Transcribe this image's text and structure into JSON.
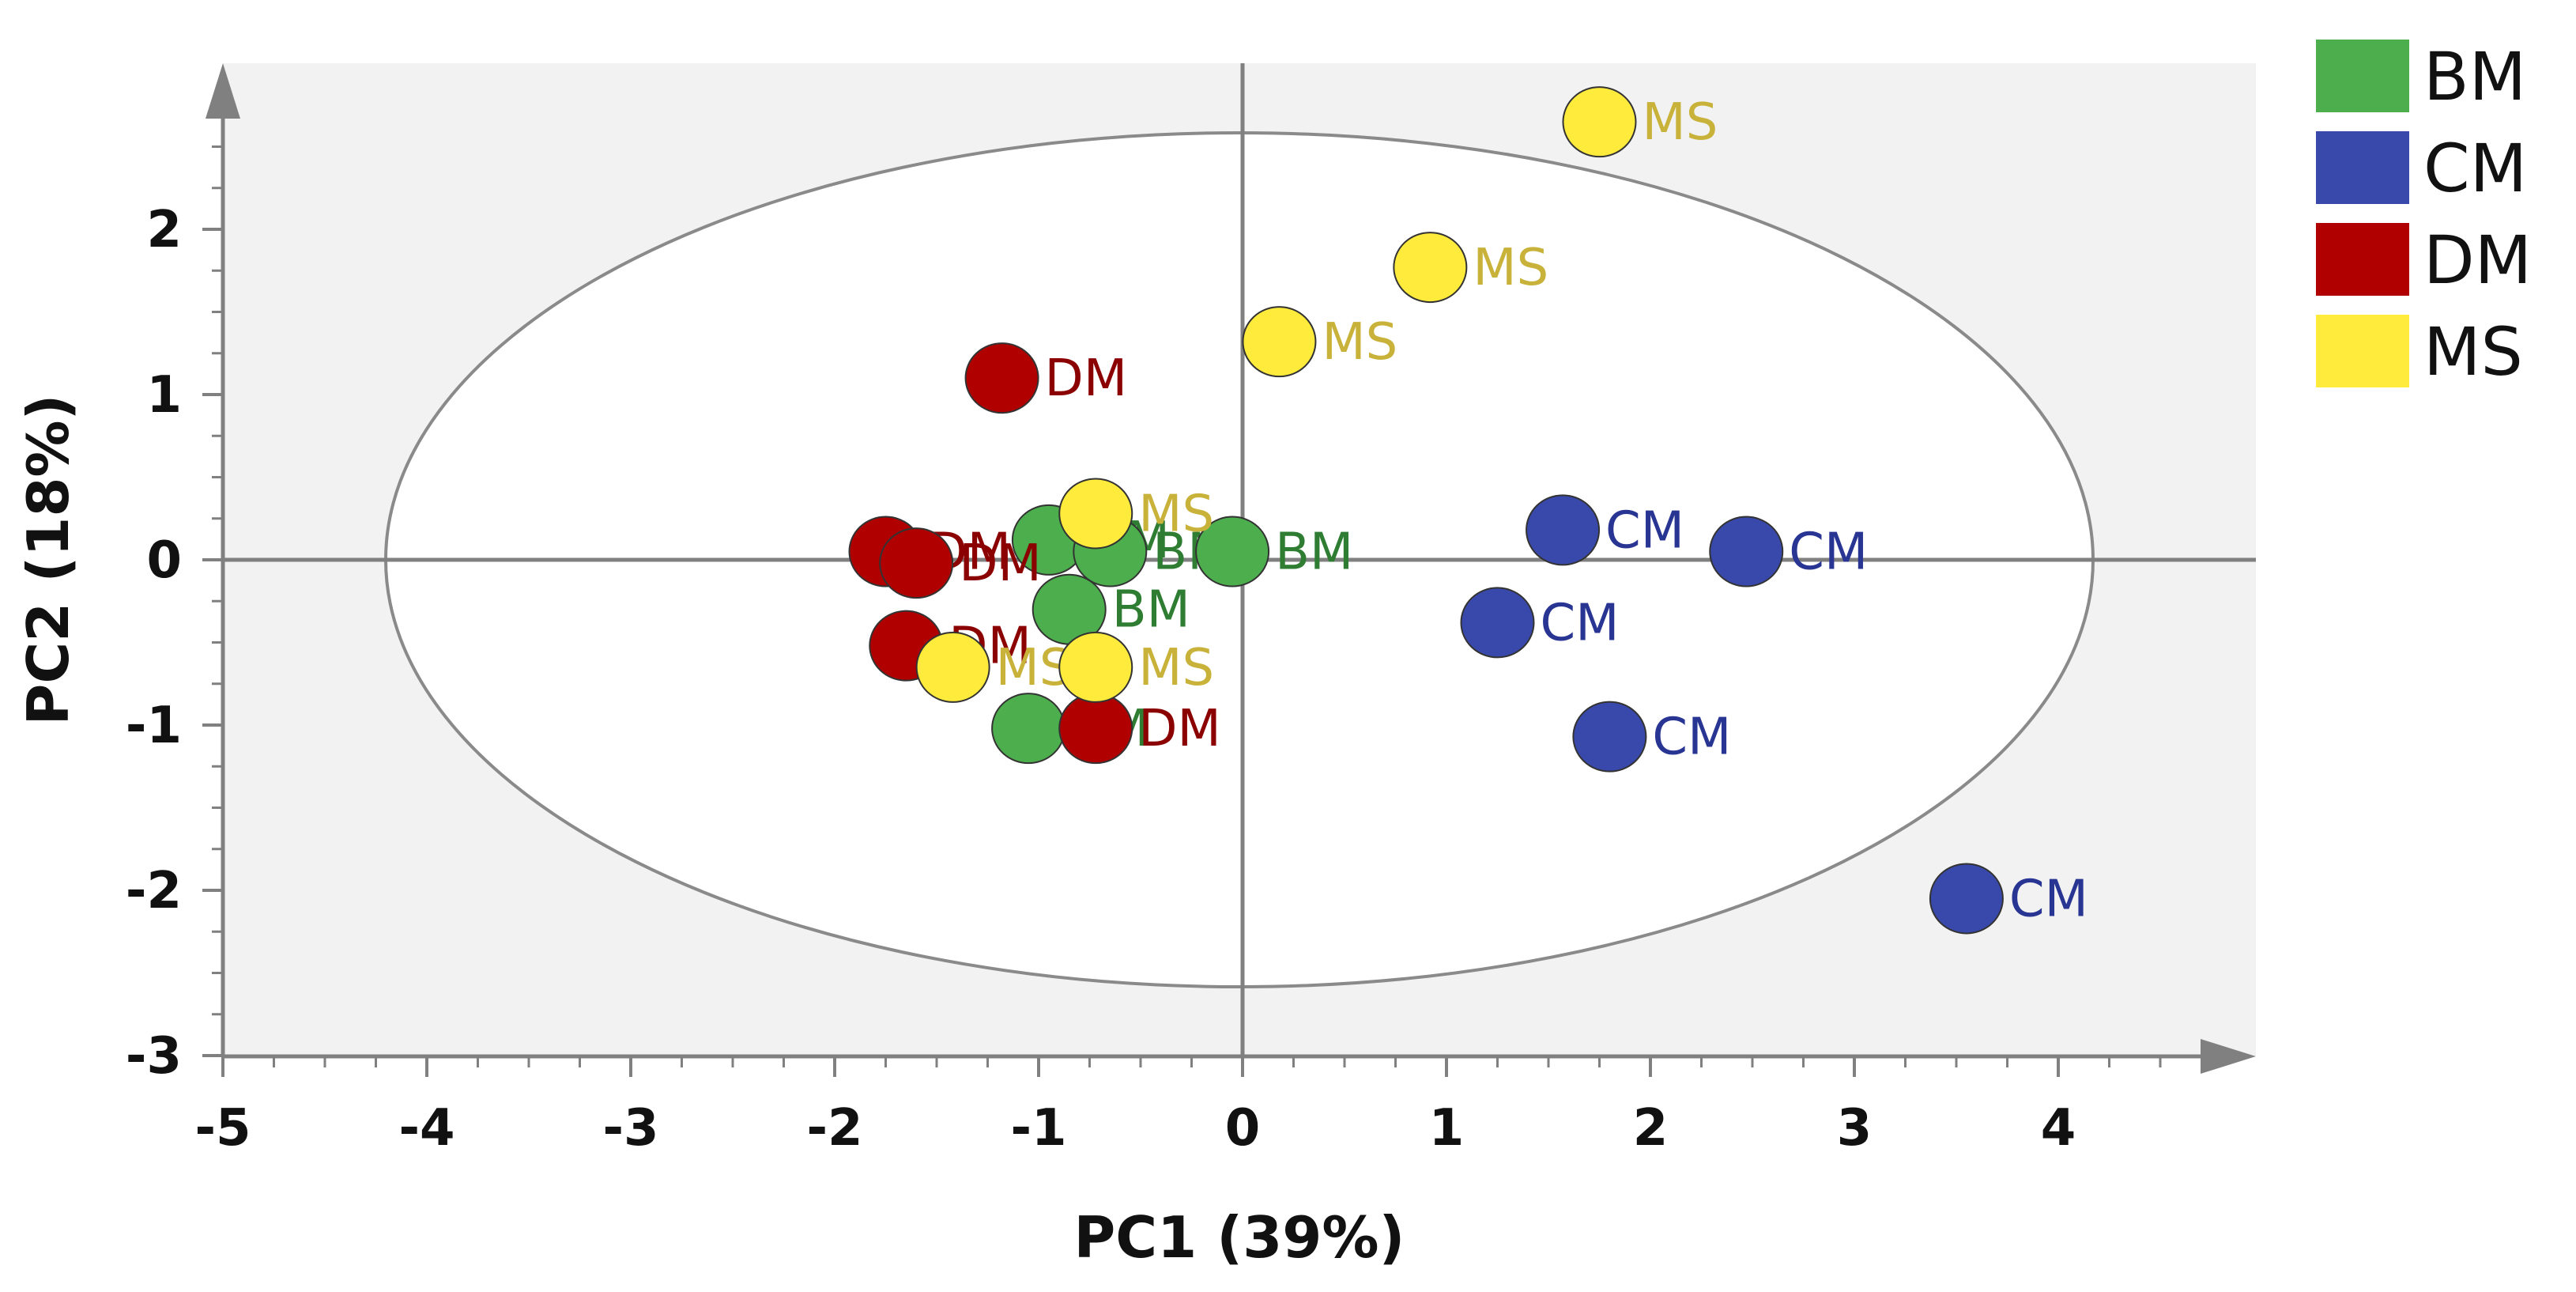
{
  "chart_data": {
    "type": "scatter",
    "title": "",
    "xlabel": "PC1 (39%)",
    "ylabel": "PC2 (18%)",
    "xlim": [
      -5,
      5
    ],
    "ylim": [
      -3,
      3
    ],
    "xticks": [
      "-5",
      "-4",
      "-3",
      "-2",
      "-1",
      "0",
      "1",
      "2",
      "3",
      "4"
    ],
    "yticks": [
      "2",
      "1",
      "0",
      "-1",
      "-2",
      "-3"
    ],
    "legend": {
      "placement": "right"
    },
    "series": [
      {
        "name": "BM",
        "color": "#4cae4c",
        "label_color": "#2e7d32",
        "points": [
          {
            "x": -0.95,
            "y": 0.12,
            "label": "BM"
          },
          {
            "x": -0.65,
            "y": 0.05,
            "label": "BM"
          },
          {
            "x": -0.05,
            "y": 0.05,
            "label": "BM"
          },
          {
            "x": -0.85,
            "y": -0.3,
            "label": "BM"
          },
          {
            "x": -1.05,
            "y": -1.02,
            "label": "BM"
          }
        ]
      },
      {
        "name": "CM",
        "color": "#3949ab",
        "label_color": "#283593",
        "points": [
          {
            "x": 1.57,
            "y": 0.18,
            "label": "CM"
          },
          {
            "x": 2.47,
            "y": 0.05,
            "label": "CM"
          },
          {
            "x": 1.25,
            "y": -0.38,
            "label": "CM"
          },
          {
            "x": 1.8,
            "y": -1.07,
            "label": "CM"
          },
          {
            "x": 3.55,
            "y": -2.05,
            "label": "CM"
          }
        ]
      },
      {
        "name": "DM",
        "color": "#b00000",
        "label_color": "#8b0000",
        "points": [
          {
            "x": -1.18,
            "y": 1.1,
            "label": "DM"
          },
          {
            "x": -1.75,
            "y": 0.05,
            "label": "DM"
          },
          {
            "x": -1.6,
            "y": -0.02,
            "label": "DM"
          },
          {
            "x": -1.65,
            "y": -0.52,
            "label": "DM"
          },
          {
            "x": -0.72,
            "y": -1.02,
            "label": "DM"
          }
        ]
      },
      {
        "name": "MS",
        "color": "#ffeb3b",
        "label_color": "#c9b23a",
        "points": [
          {
            "x": 1.75,
            "y": 2.65,
            "label": "MS"
          },
          {
            "x": 0.92,
            "y": 1.77,
            "label": "MS"
          },
          {
            "x": 0.18,
            "y": 1.32,
            "label": "MS"
          },
          {
            "x": -0.72,
            "y": 0.28,
            "label": "MS"
          },
          {
            "x": -1.42,
            "y": -0.65,
            "label": "MS"
          },
          {
            "x": -0.72,
            "y": -0.65,
            "label": "MS"
          }
        ]
      }
    ]
  }
}
